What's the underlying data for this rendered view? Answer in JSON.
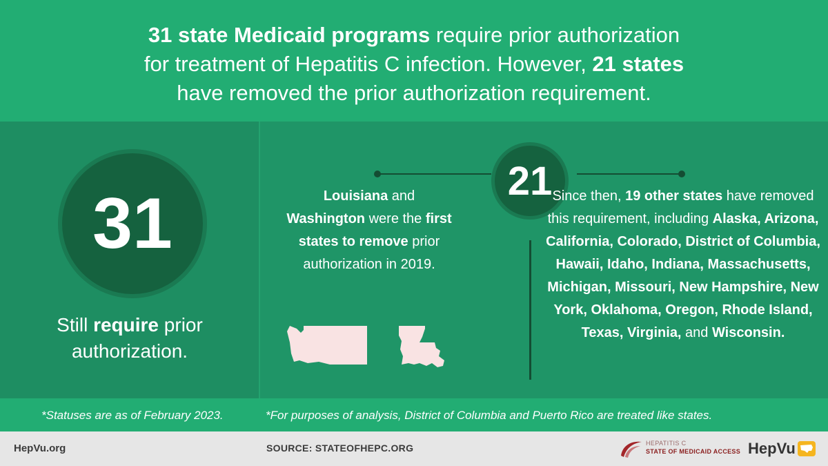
{
  "headline": {
    "bold1": "31 state Medicaid programs",
    "text1": " require prior authorization",
    "text2": "for treatment of Hepatitis C infection. However, ",
    "bold2": "21 states",
    "text3": "have removed the prior authorization requirement."
  },
  "left": {
    "number": "31",
    "caption_pre": "Still ",
    "caption_bold": "require",
    "caption_post": " prior authorization."
  },
  "center": {
    "number": "21",
    "first": {
      "b1": "Louisiana",
      "t1": " and ",
      "b2": "Washington",
      "t2": " were the ",
      "b3": "first states to remove",
      "t3": " prior authorization in 2019."
    },
    "since": {
      "t1": "Since then, ",
      "b1": "19 other states",
      "t2": " have removed this requirement, including ",
      "b2": "Alaska, Arizona, California, Colorado, District of Columbia, Hawaii, Idaho, Indiana, Massachusetts, Michigan, Missouri, New Hampshire, New York, Oklahoma, Oregon, Rhode Island, Texas, Virginia,",
      "t3": " and ",
      "b3": "Wisconsin."
    }
  },
  "notes": {
    "note1": "*Statuses are as of February 2023.",
    "note2": "*For purposes of analysis, District of Columbia and Puerto Rico are treated like states."
  },
  "footer": {
    "site": "HepVu.org",
    "source": "SOURCE: STATEOFHEPC.ORG",
    "hepc_small": "HEPATITIS C",
    "hepc_big": "STATE OF MEDICAID ACCESS",
    "hepvu_hep": "Hep",
    "hepvu_vu": "Vu"
  },
  "icons": [
    "washington-map-icon",
    "louisiana-map-icon",
    "hepc-swoosh-icon",
    "us-map-icon"
  ],
  "colors": {
    "headline_bg": "#22ad73",
    "mid_bg": "#1f9567",
    "circle": "#15623f",
    "map_fill": "#f9e3e3",
    "footer_bg": "#e6e6e6",
    "logo_yellow": "#f5b51f"
  }
}
